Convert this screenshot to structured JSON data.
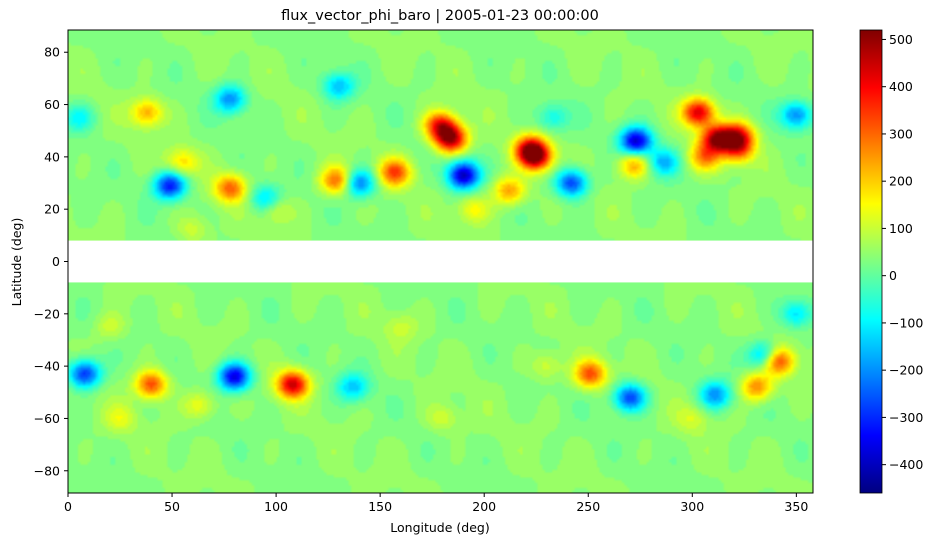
{
  "chart_data": {
    "type": "heatmap",
    "title": "flux_vector_phi_baro | 2005-01-23 00:00:00",
    "xlabel": "Longitude (deg)",
    "ylabel": "Latitude (deg)",
    "xlim": [
      0,
      358
    ],
    "ylim": [
      -88.5,
      88.5
    ],
    "xticks": [
      0,
      50,
      100,
      150,
      200,
      250,
      300,
      350
    ],
    "yticks": [
      80,
      60,
      40,
      20,
      0,
      -20,
      -40,
      -60,
      -80
    ],
    "xtick_labels": [
      "0",
      "50",
      "100",
      "150",
      "200",
      "250",
      "300",
      "350"
    ],
    "ytick_labels": [
      "80",
      "60",
      "40",
      "20",
      "0",
      "−20",
      "−40",
      "−60",
      "−80"
    ],
    "masked_lat_band": [
      -8,
      8
    ],
    "colormap": "jet",
    "colorbar": {
      "vmin": -460,
      "vmax": 520,
      "ticks": [
        500,
        400,
        300,
        200,
        100,
        0,
        -100,
        -200,
        -300,
        -400
      ],
      "tick_labels": [
        "500",
        "400",
        "300",
        "200",
        "100",
        "0",
        "−100",
        "−200",
        "−300",
        "−400"
      ]
    },
    "background_value": 40,
    "features": [
      {
        "lon": 184,
        "lat": 47,
        "value": 480
      },
      {
        "lon": 179,
        "lat": 52,
        "value": 380
      },
      {
        "lon": 225,
        "lat": 40,
        "value": 420
      },
      {
        "lon": 222,
        "lat": 43,
        "value": 380
      },
      {
        "lon": 212,
        "lat": 27,
        "value": 250
      },
      {
        "lon": 157,
        "lat": 34,
        "value": 330
      },
      {
        "lon": 312,
        "lat": 47,
        "value": 480
      },
      {
        "lon": 303,
        "lat": 57,
        "value": 430
      },
      {
        "lon": 322,
        "lat": 48,
        "value": 370
      },
      {
        "lon": 322,
        "lat": 43,
        "value": 300
      },
      {
        "lon": 306,
        "lat": 40,
        "value": 260
      },
      {
        "lon": 78,
        "lat": 28,
        "value": 300
      },
      {
        "lon": 129,
        "lat": 31,
        "value": 300
      },
      {
        "lon": 272,
        "lat": 37,
        "value": 240
      },
      {
        "lon": 38,
        "lat": 57,
        "value": 230
      },
      {
        "lon": 55,
        "lat": 38,
        "value": 180
      },
      {
        "lon": 190,
        "lat": 33,
        "value": -400
      },
      {
        "lon": 273,
        "lat": 46,
        "value": -380
      },
      {
        "lon": 49,
        "lat": 29,
        "value": -320
      },
      {
        "lon": 242,
        "lat": 30,
        "value": -280
      },
      {
        "lon": 140,
        "lat": 30,
        "value": -220
      },
      {
        "lon": 78,
        "lat": 62,
        "value": -200
      },
      {
        "lon": 350,
        "lat": 56,
        "value": -200
      },
      {
        "lon": 130,
        "lat": 67,
        "value": -150
      },
      {
        "lon": 286,
        "lat": 38,
        "value": -160
      },
      {
        "lon": 95,
        "lat": 24,
        "value": -120
      },
      {
        "lon": 5,
        "lat": 55,
        "value": -90
      },
      {
        "lon": 233,
        "lat": 55,
        "value": -80
      },
      {
        "lon": 108,
        "lat": -47,
        "value": 440
      },
      {
        "lon": 40,
        "lat": -47,
        "value": 330
      },
      {
        "lon": 341,
        "lat": -38,
        "value": 370
      },
      {
        "lon": 331,
        "lat": -48,
        "value": 270
      },
      {
        "lon": 251,
        "lat": -43,
        "value": 320
      },
      {
        "lon": 80,
        "lat": -44,
        "value": -370
      },
      {
        "lon": 8,
        "lat": -43,
        "value": -300
      },
      {
        "lon": 270,
        "lat": -52,
        "value": -270
      },
      {
        "lon": 311,
        "lat": -51,
        "value": -190
      },
      {
        "lon": 335,
        "lat": -36,
        "value": -200
      },
      {
        "lon": 350,
        "lat": -20,
        "value": -120
      },
      {
        "lon": 137,
        "lat": -48,
        "value": -140
      },
      {
        "lon": 63,
        "lat": -55,
        "value": 150
      },
      {
        "lon": 25,
        "lat": -60,
        "value": 120
      },
      {
        "lon": 230,
        "lat": -40,
        "value": 120
      },
      {
        "lon": 180,
        "lat": -60,
        "value": 110
      },
      {
        "lon": 300,
        "lat": -60,
        "value": 110
      },
      {
        "lon": 195,
        "lat": 20,
        "value": 150
      },
      {
        "lon": 100,
        "lat": 20,
        "value": 130
      },
      {
        "lon": 60,
        "lat": 12,
        "value": 110
      },
      {
        "lon": 20,
        "lat": -25,
        "value": 110
      },
      {
        "lon": 160,
        "lat": -25,
        "value": 100
      }
    ]
  }
}
